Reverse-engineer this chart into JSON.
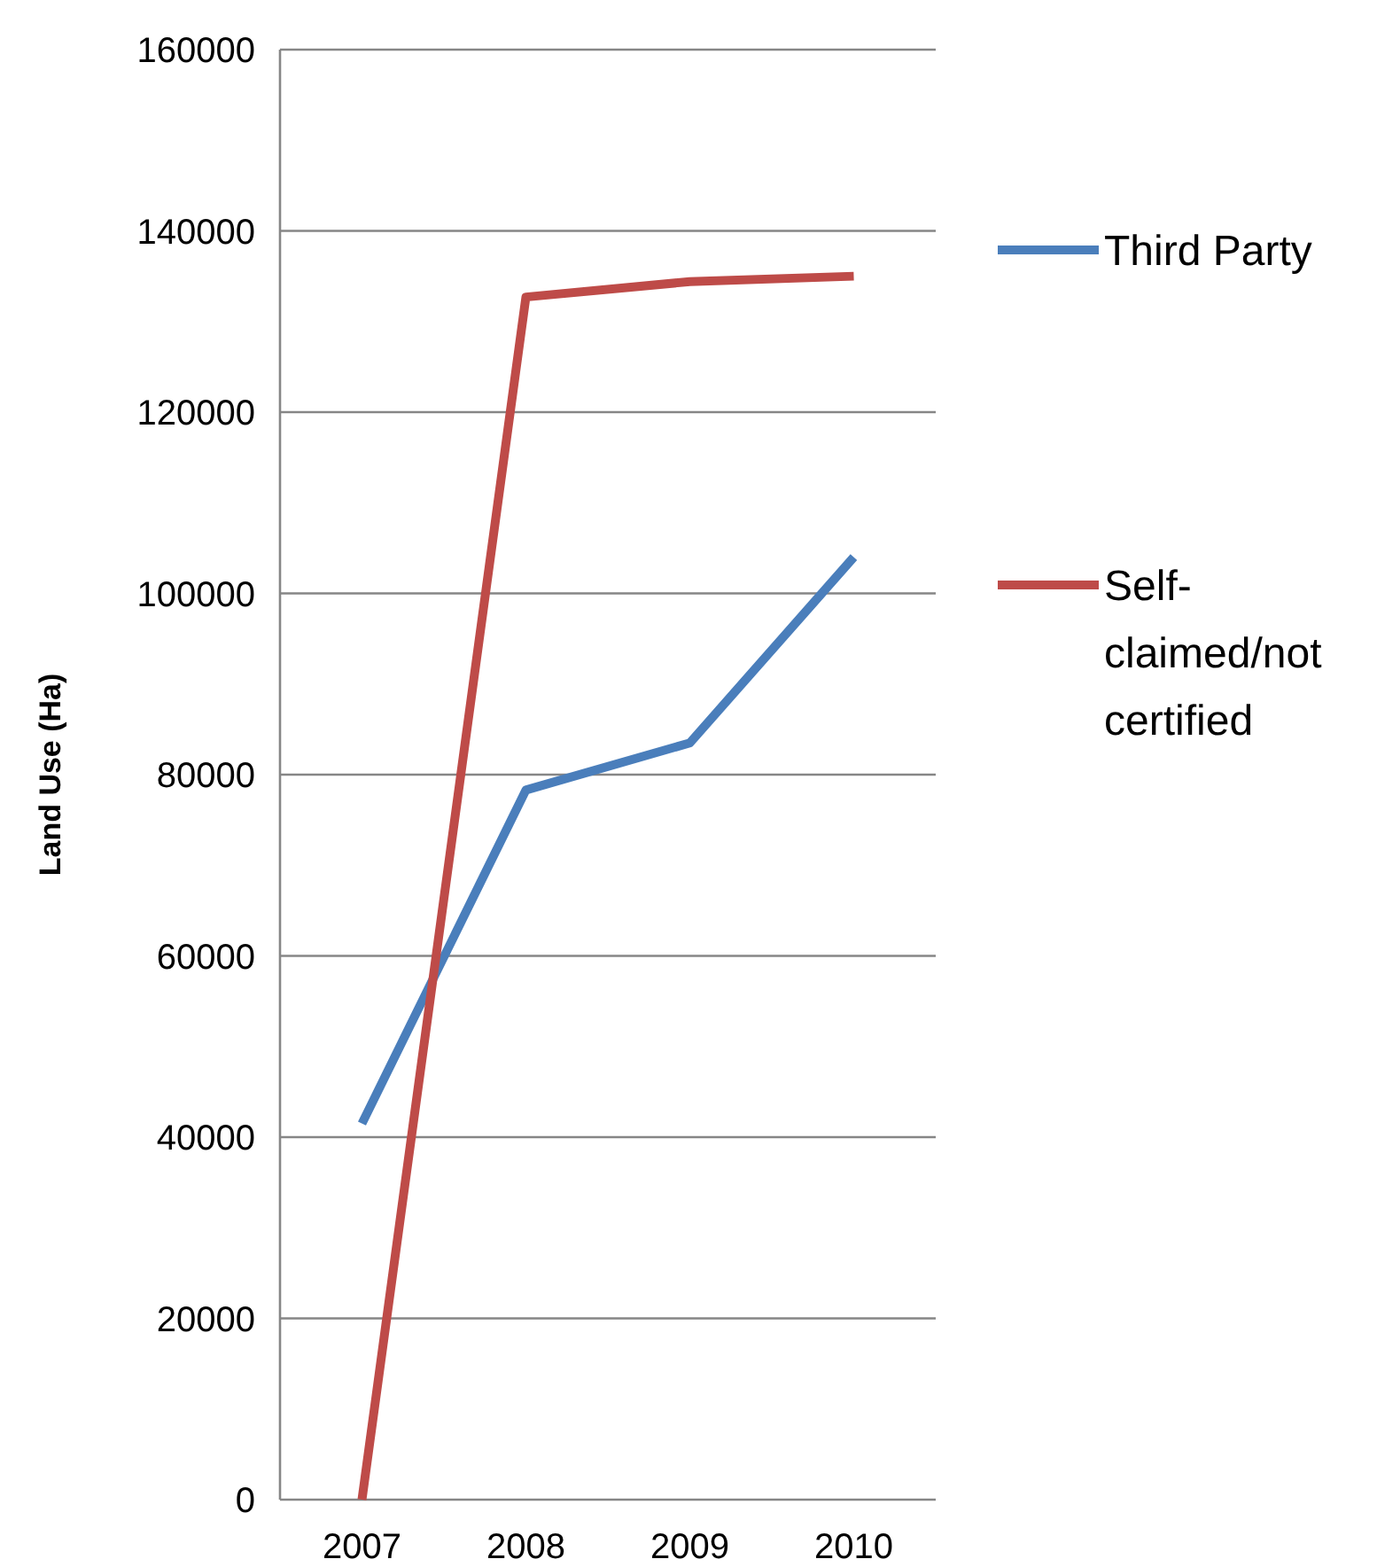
{
  "chart_data": {
    "type": "line",
    "ylabel": "Land Use (Ha)",
    "categories": [
      "2007",
      "2008",
      "2009",
      "2010"
    ],
    "series": [
      {
        "name": "Third Party",
        "color": "#4a7ebb",
        "values": [
          41500,
          78300,
          83500,
          104000
        ]
      },
      {
        "name": "Self-claimed/not certified",
        "color": "#be4b48",
        "values": [
          0,
          132700,
          134400,
          135000
        ]
      }
    ],
    "ylim": [
      0,
      160000
    ],
    "yticks": [
      0,
      20000,
      40000,
      60000,
      80000,
      100000,
      120000,
      140000,
      160000
    ],
    "grid": "y",
    "legend": "right",
    "marker": "none",
    "line_style": "solid"
  }
}
